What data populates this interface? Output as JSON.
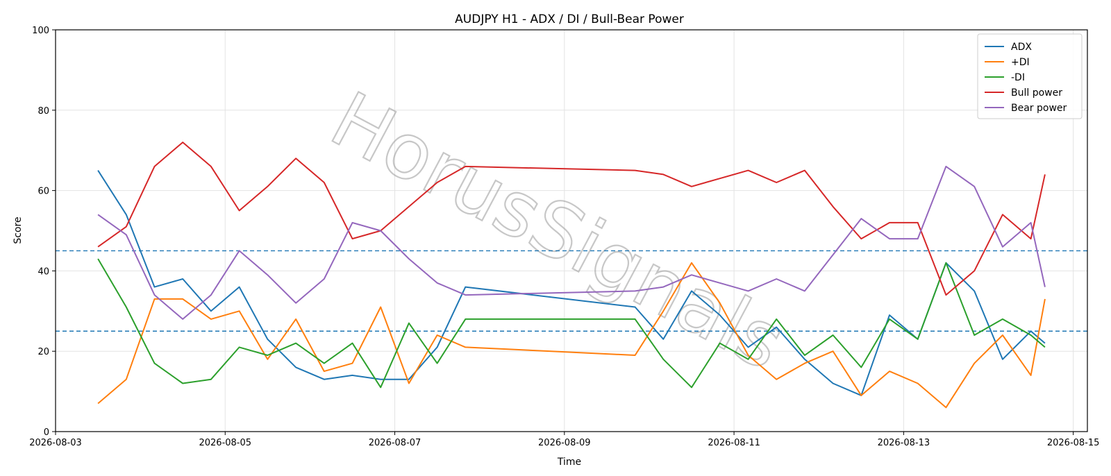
{
  "chart_data": {
    "type": "line",
    "title": "AUDJPY H1 - ADX / DI / Bull-Bear Power",
    "xlabel": "Time",
    "ylabel": "Score",
    "ylim": [
      0,
      100
    ],
    "xlim": [
      "2026-08-03 00:00",
      "2026-08-15 04:00"
    ],
    "yticks": [
      0,
      20,
      40,
      60,
      80,
      100
    ],
    "xticks": [
      "2026-08-03",
      "2026-08-05",
      "2026-08-07",
      "2026-08-09",
      "2026-08-11",
      "2026-08-13",
      "2026-08-15"
    ],
    "grid": true,
    "legend": "top-right",
    "watermark": "HorusSignals",
    "hlines": [
      {
        "y": 45,
        "color": "#1f77b4",
        "style": "dashed"
      },
      {
        "y": 25,
        "color": "#1f77b4",
        "style": "dashed"
      }
    ],
    "x": [
      "2026-08-03 12:00",
      "2026-08-03 20:00",
      "2026-08-04 04:00",
      "2026-08-04 12:00",
      "2026-08-04 20:00",
      "2026-08-05 04:00",
      "2026-08-05 12:00",
      "2026-08-05 20:00",
      "2026-08-06 04:00",
      "2026-08-06 12:00",
      "2026-08-06 20:00",
      "2026-08-07 04:00",
      "2026-08-07 12:00",
      "2026-08-07 20:00",
      "2026-08-09 20:00",
      "2026-08-10 04:00",
      "2026-08-10 12:00",
      "2026-08-10 20:00",
      "2026-08-11 04:00",
      "2026-08-11 12:00",
      "2026-08-11 20:00",
      "2026-08-12 04:00",
      "2026-08-12 12:00",
      "2026-08-12 20:00",
      "2026-08-13 04:00",
      "2026-08-13 12:00",
      "2026-08-13 20:00",
      "2026-08-14 04:00",
      "2026-08-14 12:00",
      "2026-08-14 16:00"
    ],
    "series": [
      {
        "name": "ADX",
        "color": "#1f77b4",
        "values": [
          65,
          54,
          36,
          38,
          30,
          36,
          23,
          16,
          13,
          14,
          13,
          13,
          21,
          36,
          31,
          23,
          35,
          29,
          21,
          26,
          18,
          12,
          9,
          29,
          23,
          42,
          35,
          18,
          25,
          22
        ]
      },
      {
        "name": "+DI",
        "color": "#ff7f0e",
        "values": [
          7,
          13,
          33,
          33,
          28,
          30,
          18,
          28,
          15,
          17,
          31,
          12,
          24,
          21,
          19,
          30,
          42,
          32,
          19,
          13,
          17,
          20,
          9,
          15,
          12,
          6,
          17,
          24,
          14,
          33
        ]
      },
      {
        "name": "-DI",
        "color": "#2ca02c",
        "values": [
          43,
          31,
          17,
          12,
          13,
          21,
          19,
          22,
          17,
          22,
          11,
          27,
          17,
          28,
          28,
          18,
          11,
          22,
          18,
          28,
          19,
          24,
          16,
          28,
          23,
          42,
          24,
          28,
          24,
          21
        ]
      },
      {
        "name": "Bull power",
        "color": "#d62728",
        "values": [
          46,
          51,
          66,
          72,
          66,
          55,
          61,
          68,
          62,
          48,
          50,
          56,
          62,
          66,
          65,
          64,
          61,
          63,
          65,
          62,
          65,
          56,
          48,
          52,
          52,
          34,
          40,
          54,
          48,
          64
        ]
      },
      {
        "name": "Bear power",
        "color": "#9467bd",
        "values": [
          54,
          49,
          34,
          28,
          34,
          45,
          39,
          32,
          38,
          52,
          50,
          43,
          37,
          34,
          35,
          36,
          39,
          37,
          35,
          38,
          35,
          44,
          53,
          48,
          48,
          66,
          61,
          46,
          52,
          36
        ]
      }
    ]
  }
}
